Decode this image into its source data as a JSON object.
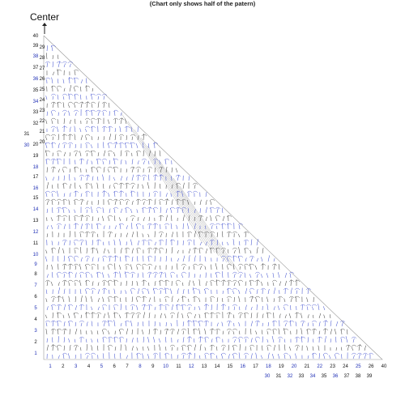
{
  "header": {
    "note": "(Chart only shows half of the patern)",
    "center_label": "Center"
  },
  "colors": {
    "odd_rows": "#1f2fb5",
    "even_rows": "#111111",
    "stitch_dark": "#333333",
    "stitch_blue": "#3344cc",
    "guide_lines": "#999999"
  },
  "left_row_numbers": [
    {
      "label": "1",
      "color": "blue"
    },
    {
      "label": "2",
      "color": "black"
    },
    {
      "label": "3",
      "color": "blue"
    },
    {
      "label": "4",
      "color": "black"
    },
    {
      "label": "5",
      "color": "blue"
    },
    {
      "label": "6",
      "color": "black"
    },
    {
      "label": "7",
      "color": "blue"
    },
    {
      "label": "8",
      "color": "black"
    },
    {
      "label": "9",
      "color": "blue"
    },
    {
      "label": "10",
      "color": "blue"
    },
    {
      "label": "11",
      "color": "black"
    },
    {
      "label": "12",
      "color": "blue"
    },
    {
      "label": "13",
      "color": "black"
    },
    {
      "label": "14",
      "color": "blue"
    },
    {
      "label": "15",
      "color": "black"
    },
    {
      "label": "16",
      "color": "blue"
    },
    {
      "label": "17",
      "color": "black"
    },
    {
      "label": "18",
      "color": "blue"
    },
    {
      "label": "19",
      "color": "black"
    },
    {
      "label": "20",
      "color": "black"
    },
    {
      "label": "30",
      "color": "blue"
    },
    {
      "label": "31",
      "color": "black"
    },
    {
      "label": "32",
      "color": "black"
    },
    {
      "label": "33",
      "color": "black"
    },
    {
      "label": "34",
      "color": "blue"
    },
    {
      "label": "35",
      "color": "black"
    },
    {
      "label": "36",
      "color": "blue"
    },
    {
      "label": "37",
      "color": "black"
    },
    {
      "label": "38",
      "color": "blue"
    },
    {
      "label": "39",
      "color": "black"
    },
    {
      "label": "40",
      "color": "black"
    }
  ],
  "bottom_row_numbers": [
    {
      "label": "1",
      "color": "blue"
    },
    {
      "label": "2",
      "color": "black"
    },
    {
      "label": "3",
      "color": "blue"
    },
    {
      "label": "4",
      "color": "black"
    },
    {
      "label": "5",
      "color": "blue"
    },
    {
      "label": "6",
      "color": "black"
    },
    {
      "label": "7",
      "color": "black"
    },
    {
      "label": "8",
      "color": "blue"
    },
    {
      "label": "9",
      "color": "black"
    },
    {
      "label": "10",
      "color": "blue"
    },
    {
      "label": "11",
      "color": "black"
    },
    {
      "label": "12",
      "color": "blue"
    },
    {
      "label": "13",
      "color": "black"
    },
    {
      "label": "14",
      "color": "black"
    },
    {
      "label": "15",
      "color": "black"
    },
    {
      "label": "16",
      "color": "blue"
    },
    {
      "label": "17",
      "color": "black"
    },
    {
      "label": "18",
      "color": "blue"
    },
    {
      "label": "19",
      "color": "black"
    },
    {
      "label": "20",
      "color": "blue"
    },
    {
      "label": "21",
      "color": "black"
    },
    {
      "label": "22",
      "color": "blue"
    },
    {
      "label": "23",
      "color": "black"
    },
    {
      "label": "24",
      "color": "black"
    },
    {
      "label": "25",
      "color": "blue"
    },
    {
      "label": "26",
      "color": "black"
    },
    {
      "label": "40",
      "color": "black"
    }
  ],
  "bottom_secondary_numbers": [
    {
      "label": "30",
      "color": "blue"
    },
    {
      "label": "31",
      "color": "black"
    },
    {
      "label": "32",
      "color": "blue"
    },
    {
      "label": "33",
      "color": "black"
    },
    {
      "label": "34",
      "color": "blue"
    },
    {
      "label": "35",
      "color": "black"
    },
    {
      "label": "36",
      "color": "blue"
    },
    {
      "label": "37",
      "color": "black"
    },
    {
      "label": "38",
      "color": "black"
    },
    {
      "label": "39",
      "color": "black"
    }
  ],
  "diagonal_labels": [
    {
      "label": "29",
      "color": "black"
    },
    {
      "label": "28",
      "color": "black"
    },
    {
      "label": "27",
      "color": "black"
    },
    {
      "label": "26",
      "color": "black"
    },
    {
      "label": "25",
      "color": "black"
    },
    {
      "label": "24",
      "color": "black"
    },
    {
      "label": "23",
      "color": "black"
    },
    {
      "label": "22",
      "color": "black"
    },
    {
      "label": "21",
      "color": "black"
    },
    {
      "label": "20",
      "color": "black"
    }
  ]
}
